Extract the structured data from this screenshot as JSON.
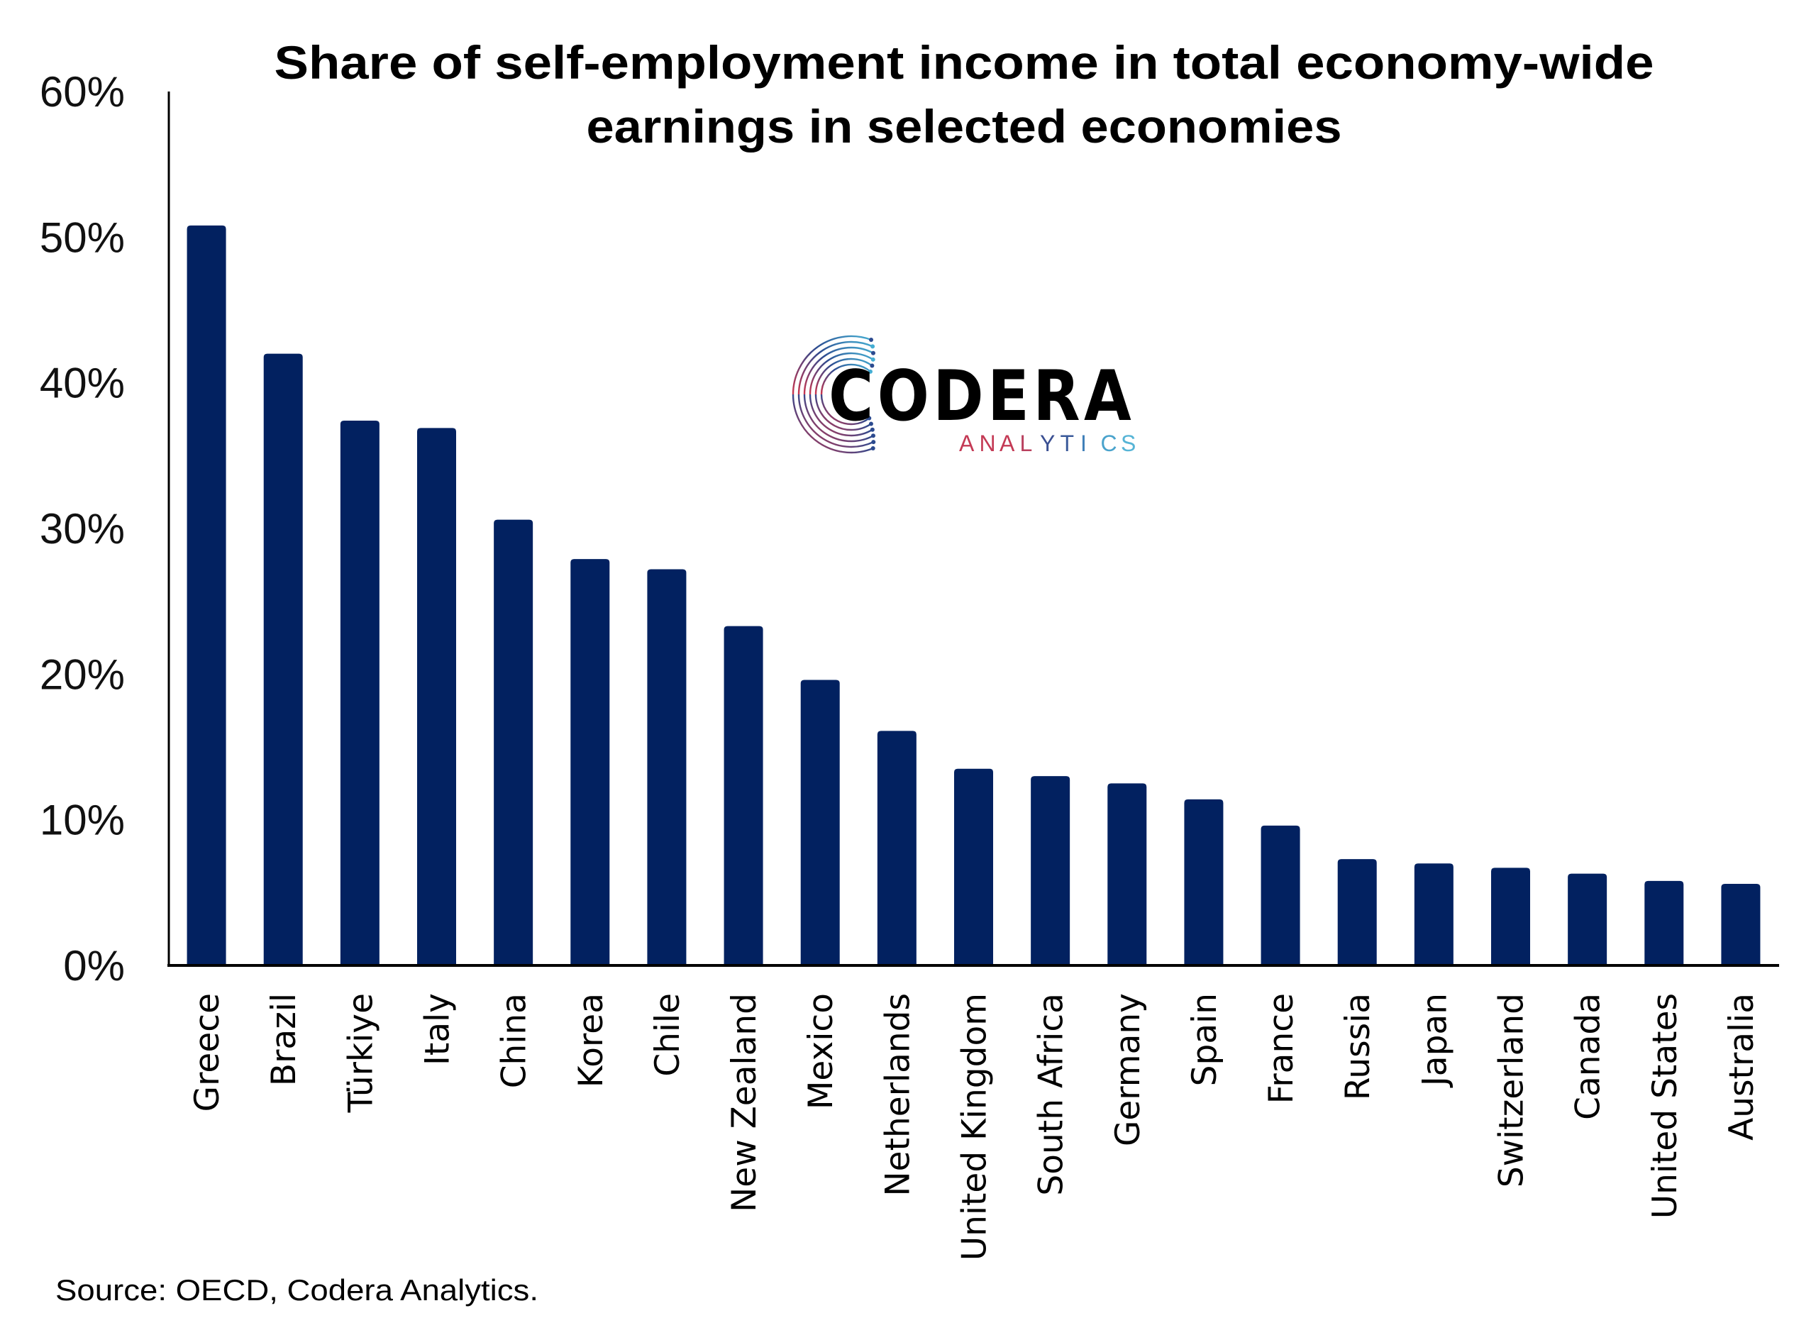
{
  "chart_data": {
    "type": "bar",
    "title_lines": [
      "Share of self-employment income in total economy-wide",
      "earnings in selected economies"
    ],
    "xlabel": "",
    "ylabel": "",
    "ylim": [
      0,
      60
    ],
    "yticks": [
      0,
      10,
      20,
      30,
      40,
      50,
      60
    ],
    "ytick_labels": [
      "0%",
      "10%",
      "20%",
      "30%",
      "40%",
      "50%",
      "60%"
    ],
    "grid": false,
    "legend": "none",
    "categories": [
      "Greece",
      "Brazil",
      "Türkiye",
      "Italy",
      "China",
      "Korea",
      "Chile",
      "New Zealand",
      "Mexico",
      "Netherlands",
      "United Kingdom",
      "South Africa",
      "Germany",
      "Spain",
      "France",
      "Russia",
      "Japan",
      "Switzerland",
      "Canada",
      "United States",
      "Australia"
    ],
    "series": [
      {
        "name": "Share of self-employment income",
        "unit": "%",
        "color": "#022160",
        "values": [
          50.8,
          42.0,
          37.4,
          36.9,
          30.6,
          27.9,
          27.2,
          23.3,
          19.6,
          16.1,
          13.5,
          13.0,
          12.5,
          11.4,
          9.6,
          7.3,
          7.0,
          6.7,
          6.3,
          5.8,
          5.6
        ]
      }
    ],
    "source": "Source: OECD, Codera Analytics."
  },
  "logo": {
    "name": "CODERA",
    "subtitle_letters": [
      "A",
      "N",
      "A",
      "L",
      "Y",
      "T",
      "I",
      "C",
      "S"
    ],
    "subtitle_colors": [
      "#c43a55",
      "#c43a55",
      "#c43a55",
      "#b9405e",
      "#3a4f92",
      "#3a5a9a",
      "#3f7fb8",
      "#4aa3cc",
      "#56b4d6"
    ],
    "colors": {
      "red": "#c8364f",
      "blue": "#2c4a8f",
      "cyan": "#45aed3"
    }
  },
  "colors": {
    "bar": "#022160",
    "axis": "#000000"
  }
}
